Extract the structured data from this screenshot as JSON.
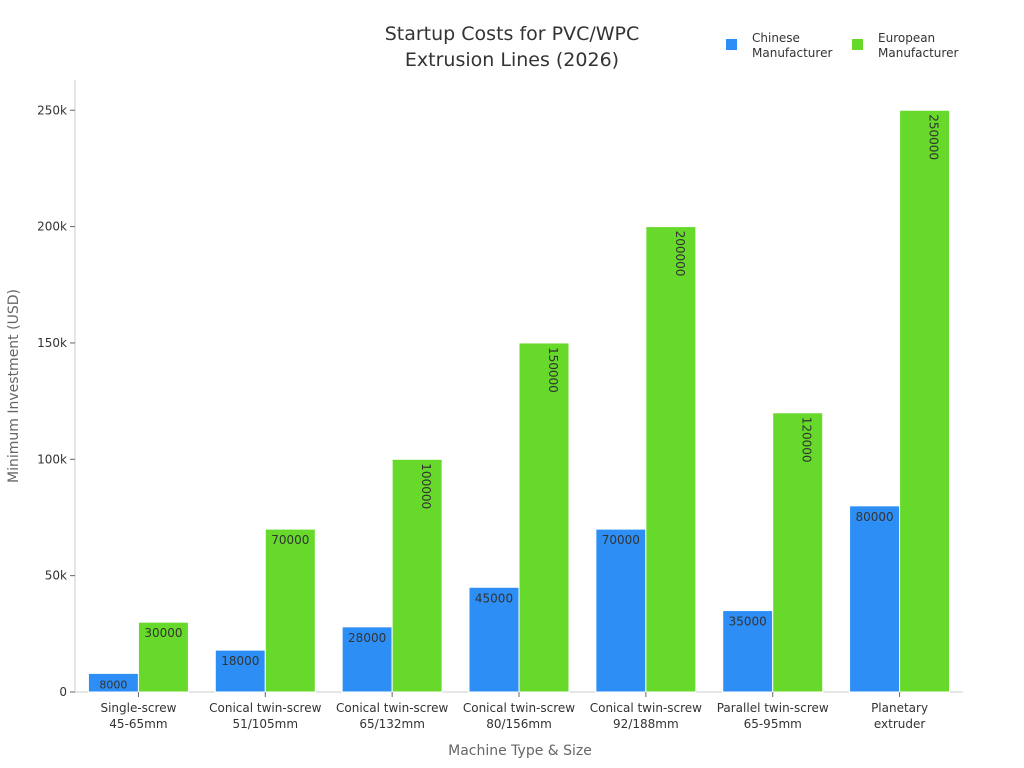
{
  "chart_data": {
    "type": "bar",
    "title": "Startup Costs for PVC/WPC Extrusion Lines (2026)",
    "title_lines": [
      "Startup Costs for PVC/WPC",
      "Extrusion Lines (2026)"
    ],
    "xlabel": "Machine Type & Size",
    "ylabel": "Minimum Investment (USD)",
    "ylim": [
      0,
      263000
    ],
    "yticks": [
      0,
      50000,
      100000,
      150000,
      200000,
      250000
    ],
    "ytick_labels": [
      "0",
      "50k",
      "100k",
      "150k",
      "200k",
      "250k"
    ],
    "grid": false,
    "legend_position": "top-right",
    "categories": [
      [
        "Single-screw",
        "45-65mm"
      ],
      [
        "Conical twin-screw",
        "51/105mm"
      ],
      [
        "Conical twin-screw",
        "65/132mm"
      ],
      [
        "Conical twin-screw",
        "80/156mm"
      ],
      [
        "Conical twin-screw",
        "92/188mm"
      ],
      [
        "Parallel twin-screw",
        "65-95mm"
      ],
      [
        "Planetary",
        "extruder"
      ]
    ],
    "series": [
      {
        "name": "Chinese Manufacturer",
        "legend_lines": [
          "Chinese",
          "Manufacturer"
        ],
        "color": "#2d8ff5",
        "values": [
          8000,
          18000,
          28000,
          45000,
          70000,
          35000,
          80000
        ]
      },
      {
        "name": "European Manufacturer",
        "legend_lines": [
          "European",
          "Manufacturer"
        ],
        "color": "#66d92a",
        "values": [
          30000,
          70000,
          100000,
          150000,
          200000,
          120000,
          250000
        ]
      }
    ]
  }
}
